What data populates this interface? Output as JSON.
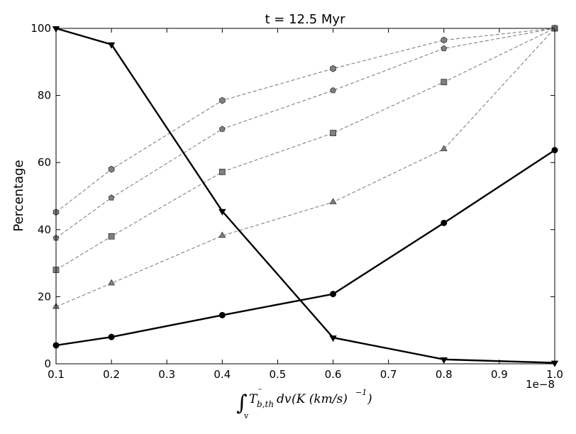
{
  "chart_data": {
    "type": "line",
    "title": "t = 12.5 Myr",
    "ylabel": "Percentage",
    "xlabel_parts": {
      "integral": "∫",
      "subscript_v": "v",
      "T": "T",
      "prime": "′′",
      "sub": "b,th",
      "dv": "dv",
      "units": "(K (km/s)",
      "exp": "−1",
      "close": ")"
    },
    "x_offset_label": "1e−8",
    "xlim": [
      0.1,
      1.0
    ],
    "ylim": [
      0,
      100
    ],
    "x_ticks": [
      0.1,
      0.2,
      0.3,
      0.4,
      0.5,
      0.6,
      0.7,
      0.8,
      0.9,
      1.0
    ],
    "x_tick_labels": [
      "0.1",
      "0.2",
      "0.3",
      "0.4",
      "0.5",
      "0.6",
      "0.7",
      "0.8",
      "0.9",
      "1.0"
    ],
    "y_ticks": [
      0,
      20,
      40,
      60,
      80,
      100
    ],
    "y_tick_labels": [
      "0",
      "20",
      "40",
      "60",
      "80",
      "100"
    ],
    "grid": false,
    "series": [
      {
        "style": "solid-black",
        "marker": "triangle-down",
        "x": [
          0.1,
          0.2,
          0.4,
          0.6,
          0.8,
          1.0
        ],
        "y": [
          100,
          95.2,
          45.5,
          7.8,
          1.3,
          0.3
        ]
      },
      {
        "style": "solid-black",
        "marker": "circle",
        "x": [
          0.1,
          0.2,
          0.4,
          0.6,
          0.8,
          1.0
        ],
        "y": [
          5.5,
          8.0,
          14.5,
          20.8,
          42.0,
          63.7
        ]
      },
      {
        "style": "dashed-gray",
        "marker": "hexagon",
        "x": [
          0.1,
          0.2,
          0.4,
          0.6,
          0.8,
          1.0
        ],
        "y": [
          45.2,
          58.0,
          78.5,
          88.0,
          96.5,
          100
        ]
      },
      {
        "style": "dashed-gray",
        "marker": "pentagon",
        "x": [
          0.1,
          0.2,
          0.4,
          0.6,
          0.8,
          1.0
        ],
        "y": [
          37.5,
          49.5,
          70.0,
          81.5,
          94.0,
          100
        ]
      },
      {
        "style": "dashed-gray",
        "marker": "square",
        "x": [
          0.1,
          0.2,
          0.4,
          0.6,
          0.8,
          1.0
        ],
        "y": [
          28.0,
          38.0,
          57.2,
          68.8,
          84.0,
          100
        ]
      },
      {
        "style": "dashed-gray",
        "marker": "triangle-up",
        "x": [
          0.1,
          0.2,
          0.4,
          0.6,
          0.8,
          1.0
        ],
        "y": [
          17.0,
          24.0,
          38.2,
          48.2,
          64.0,
          100
        ]
      }
    ],
    "colors": {
      "solid": "#000000",
      "dashed_line": "#808080",
      "marker_fill": "#808080",
      "marker_edge": "#333333"
    }
  }
}
